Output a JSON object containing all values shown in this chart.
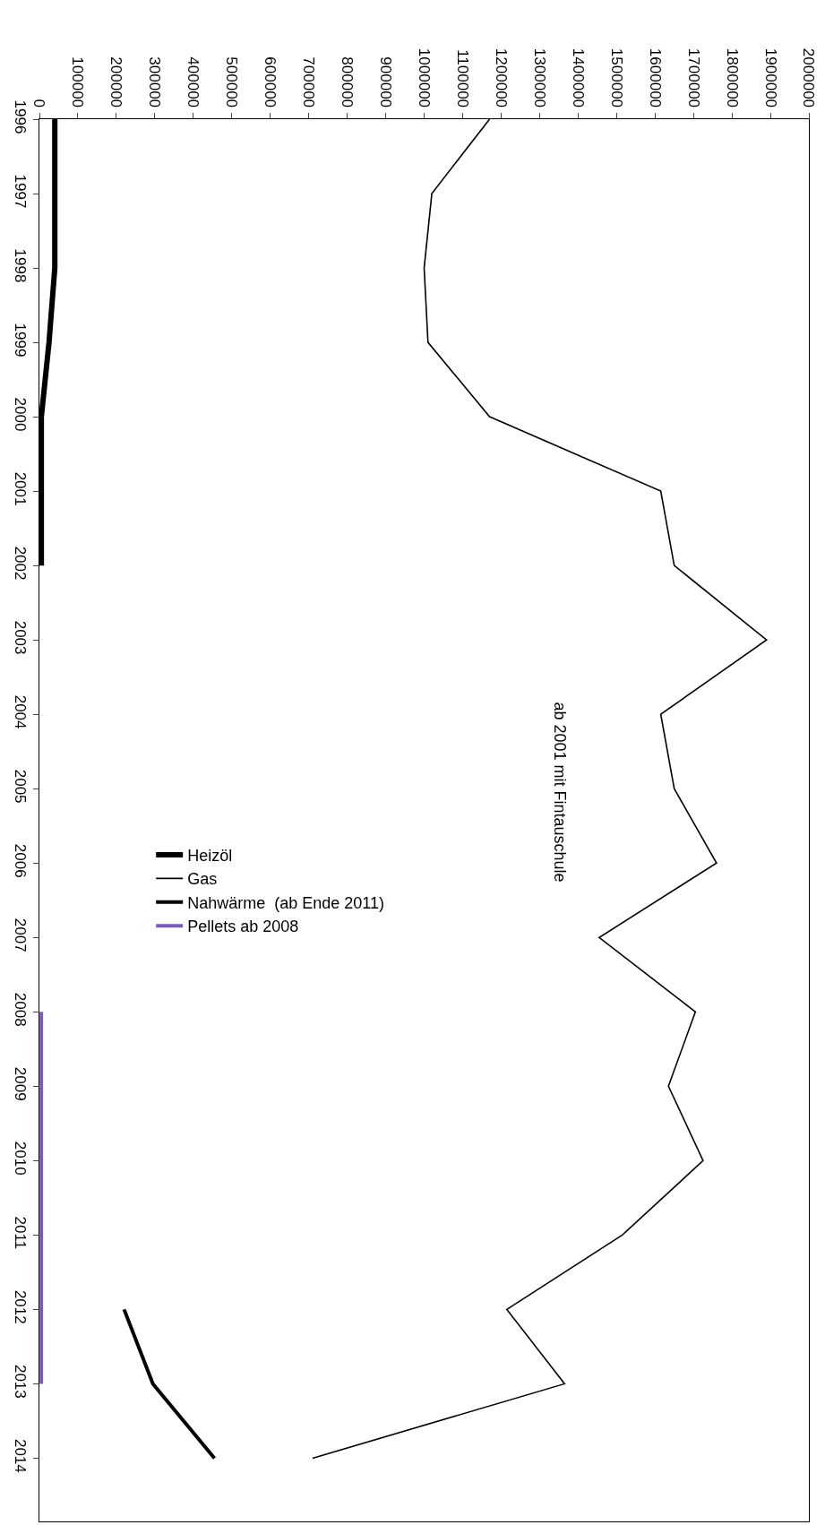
{
  "chart_data": {
    "type": "line",
    "orientation": "horizontal",
    "categories": [
      "1996",
      "1997",
      "1998",
      "1999",
      "2000",
      "2001",
      "2002",
      "2003",
      "2004",
      "2005",
      "2006",
      "2007",
      "2008",
      "2009",
      "2010",
      "2011",
      "2012",
      "2013",
      "2014"
    ],
    "series": [
      {
        "name": "Heizöl",
        "color": "#000000",
        "values": [
          40000,
          40000,
          40000,
          25000,
          5000,
          5000,
          5000,
          null,
          null,
          null,
          null,
          null,
          null,
          null,
          null,
          null,
          null,
          null,
          null
        ]
      },
      {
        "name": "Gas",
        "color": "#000000",
        "values": [
          1170000,
          1020000,
          1000000,
          1010000,
          1170000,
          1615000,
          1650000,
          1890000,
          1615000,
          1650000,
          1760000,
          1455000,
          1705000,
          1635000,
          1725000,
          1515000,
          1215000,
          1365000,
          710000
        ]
      },
      {
        "name": "Nahwärme  (ab Ende 2011)",
        "color": "#000000",
        "values": [
          null,
          null,
          null,
          null,
          null,
          null,
          null,
          null,
          null,
          null,
          null,
          null,
          null,
          null,
          null,
          null,
          220000,
          295000,
          455000
        ]
      },
      {
        "name": "Pellets ab 2008",
        "color": "#7b5cb8",
        "values": [
          null,
          null,
          null,
          null,
          null,
          null,
          null,
          null,
          null,
          null,
          null,
          null,
          5000,
          5000,
          5000,
          5000,
          5000,
          5000,
          null
        ]
      }
    ],
    "annotations": [
      "ab 2001 mit Fintauschule"
    ],
    "xlim": [
      0,
      2000000
    ],
    "xticks": [
      0,
      100000,
      200000,
      300000,
      400000,
      500000,
      600000,
      700000,
      800000,
      900000,
      1000000,
      1100000,
      1200000,
      1300000,
      1400000,
      1500000,
      1600000,
      1700000,
      1800000,
      1900000,
      2000000
    ],
    "legend": "center",
    "marker": "none",
    "line_style": "solid"
  }
}
